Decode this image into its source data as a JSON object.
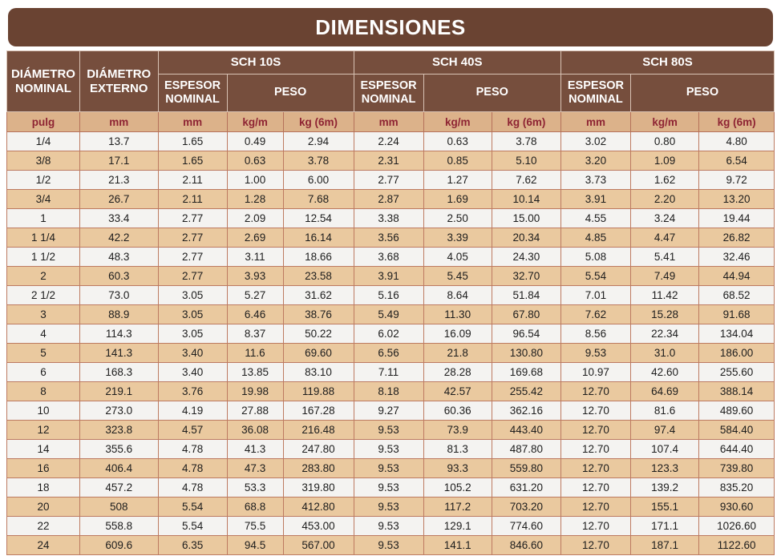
{
  "title": "DIMENSIONES",
  "colors": {
    "title_bar": "#6a4332",
    "header_bg": "#764e3d",
    "header_text": "#ffffff",
    "units_bg": "#dcb28a",
    "units_text": "#8e2433",
    "row_light": "#f4f3f1",
    "row_tan": "#eac99f",
    "cell_border": "#bd7a61"
  },
  "chart_data": {
    "type": "table",
    "title": "DIMENSIONES",
    "column_groups": [
      {
        "label": "DIÁMETRO NOMINAL"
      },
      {
        "label": "DIÁMETRO EXTERNO"
      },
      {
        "label": "SCH 10S",
        "sub": [
          "ESPESOR NOMINAL",
          "PESO"
        ]
      },
      {
        "label": "SCH 40S",
        "sub": [
          "ESPESOR NOMINAL",
          "PESO"
        ]
      },
      {
        "label": "SCH 80S",
        "sub": [
          "ESPESOR NOMINAL",
          "PESO"
        ]
      }
    ],
    "units": [
      "pulg",
      "mm",
      "mm",
      "kg/m",
      "kg (6m)",
      "mm",
      "kg/m",
      "kg (6m)",
      "mm",
      "kg/m",
      "kg (6m)"
    ],
    "rows": [
      [
        "1/4",
        "13.7",
        "1.65",
        "0.49",
        "2.94",
        "2.24",
        "0.63",
        "3.78",
        "3.02",
        "0.80",
        "4.80"
      ],
      [
        "3/8",
        "17.1",
        "1.65",
        "0.63",
        "3.78",
        "2.31",
        "0.85",
        "5.10",
        "3.20",
        "1.09",
        "6.54"
      ],
      [
        "1/2",
        "21.3",
        "2.11",
        "1.00",
        "6.00",
        "2.77",
        "1.27",
        "7.62",
        "3.73",
        "1.62",
        "9.72"
      ],
      [
        "3/4",
        "26.7",
        "2.11",
        "1.28",
        "7.68",
        "2.87",
        "1.69",
        "10.14",
        "3.91",
        "2.20",
        "13.20"
      ],
      [
        "1",
        "33.4",
        "2.77",
        "2.09",
        "12.54",
        "3.38",
        "2.50",
        "15.00",
        "4.55",
        "3.24",
        "19.44"
      ],
      [
        "1 1/4",
        "42.2",
        "2.77",
        "2.69",
        "16.14",
        "3.56",
        "3.39",
        "20.34",
        "4.85",
        "4.47",
        "26.82"
      ],
      [
        "1 1/2",
        "48.3",
        "2.77",
        "3.11",
        "18.66",
        "3.68",
        "4.05",
        "24.30",
        "5.08",
        "5.41",
        "32.46"
      ],
      [
        "2",
        "60.3",
        "2.77",
        "3.93",
        "23.58",
        "3.91",
        "5.45",
        "32.70",
        "5.54",
        "7.49",
        "44.94"
      ],
      [
        "2 1/2",
        "73.0",
        "3.05",
        "5.27",
        "31.62",
        "5.16",
        "8.64",
        "51.84",
        "7.01",
        "11.42",
        "68.52"
      ],
      [
        "3",
        "88.9",
        "3.05",
        "6.46",
        "38.76",
        "5.49",
        "11.30",
        "67.80",
        "7.62",
        "15.28",
        "91.68"
      ],
      [
        "4",
        "114.3",
        "3.05",
        "8.37",
        "50.22",
        "6.02",
        "16.09",
        "96.54",
        "8.56",
        "22.34",
        "134.04"
      ],
      [
        "5",
        "141.3",
        "3.40",
        "11.6",
        "69.60",
        "6.56",
        "21.8",
        "130.80",
        "9.53",
        "31.0",
        "186.00"
      ],
      [
        "6",
        "168.3",
        "3.40",
        "13.85",
        "83.10",
        "7.11",
        "28.28",
        "169.68",
        "10.97",
        "42.60",
        "255.60"
      ],
      [
        "8",
        "219.1",
        "3.76",
        "19.98",
        "119.88",
        "8.18",
        "42.57",
        "255.42",
        "12.70",
        "64.69",
        "388.14"
      ],
      [
        "10",
        "273.0",
        "4.19",
        "27.88",
        "167.28",
        "9.27",
        "60.36",
        "362.16",
        "12.70",
        "81.6",
        "489.60"
      ],
      [
        "12",
        "323.8",
        "4.57",
        "36.08",
        "216.48",
        "9.53",
        "73.9",
        "443.40",
        "12.70",
        "97.4",
        "584.40"
      ],
      [
        "14",
        "355.6",
        "4.78",
        "41.3",
        "247.80",
        "9.53",
        "81.3",
        "487.80",
        "12.70",
        "107.4",
        "644.40"
      ],
      [
        "16",
        "406.4",
        "4.78",
        "47.3",
        "283.80",
        "9.53",
        "93.3",
        "559.80",
        "12.70",
        "123.3",
        "739.80"
      ],
      [
        "18",
        "457.2",
        "4.78",
        "53.3",
        "319.80",
        "9.53",
        "105.2",
        "631.20",
        "12.70",
        "139.2",
        "835.20"
      ],
      [
        "20",
        "508",
        "5.54",
        "68.8",
        "412.80",
        "9.53",
        "117.2",
        "703.20",
        "12.70",
        "155.1",
        "930.60"
      ],
      [
        "22",
        "558.8",
        "5.54",
        "75.5",
        "453.00",
        "9.53",
        "129.1",
        "774.60",
        "12.70",
        "171.1",
        "1026.60"
      ],
      [
        "24",
        "609.6",
        "6.35",
        "94.5",
        "567.00",
        "9.53",
        "141.1",
        "846.60",
        "12.70",
        "187.1",
        "1122.60"
      ]
    ]
  }
}
